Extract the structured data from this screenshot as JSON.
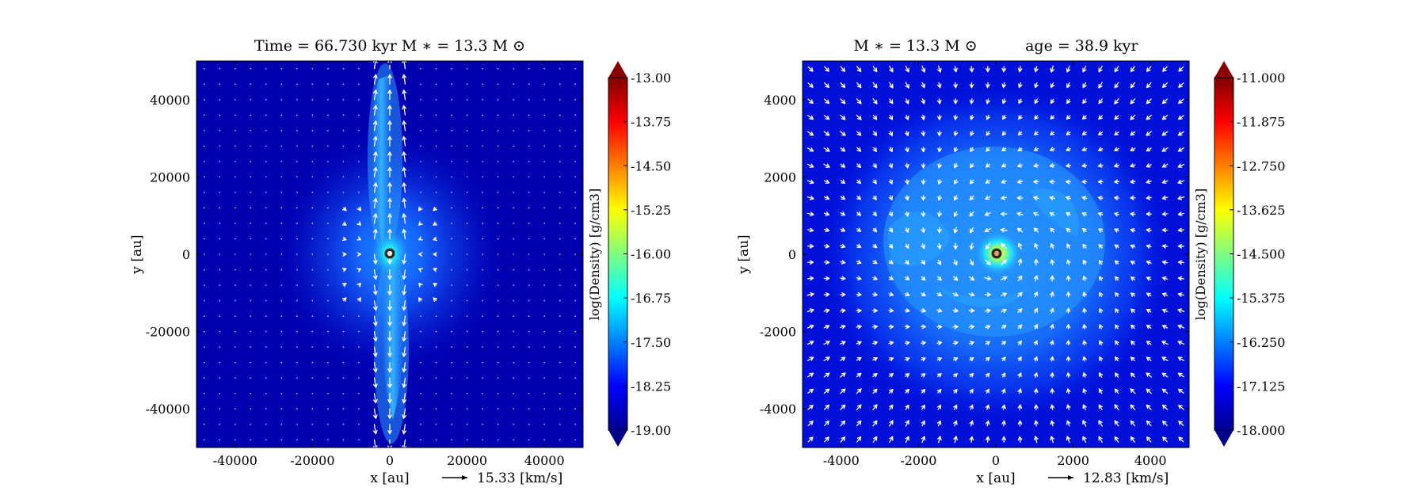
{
  "chart_data": [
    {
      "type": "heatmap",
      "title": "Time = 66.730 kyr    M$_*$ = 13.3 M$_\\odot$",
      "title_text": "Time = 66.730 kyr    M ∗ = 13.3 M ⊙",
      "xlabel": "x [au]",
      "ylabel": "y [au]",
      "xlim": [
        -50000,
        50000
      ],
      "ylim": [
        -50000,
        50000
      ],
      "xticks": [
        -40000,
        -20000,
        0,
        20000,
        40000
      ],
      "yticks": [
        40000,
        20000,
        0,
        -20000,
        -40000
      ],
      "xtick_labels": [
        "-40000",
        "-20000",
        "0",
        "20000",
        "40000"
      ],
      "ytick_labels": [
        "40000",
        "20000",
        "0",
        "-20000",
        "-40000"
      ],
      "colorbar": {
        "label": "log(Density) [g/cm3]",
        "range": [
          -19.0,
          -13.0
        ],
        "ticks": [
          -13.0,
          -13.75,
          -14.5,
          -15.25,
          -16.0,
          -16.75,
          -17.5,
          -18.25,
          -19.0
        ],
        "tick_labels": [
          "-13.00",
          "-13.75",
          "-14.50",
          "-15.25",
          "-16.00",
          "-16.75",
          "-17.50",
          "-18.25",
          "-19.00"
        ],
        "colormap": "jet",
        "extend": "both"
      },
      "quiver_key": "15.33 [km/s]",
      "structure": "bipolar outflow lobes along the y-axis around a central star at (0, 0)"
    },
    {
      "type": "heatmap",
      "title": "M$_*$ = 13.3 M$_\\odot$        age = 38.9 kyr",
      "title_text": "M ∗ = 13.3 M ⊙          age = 38.9 kyr",
      "xlabel": "x [au]",
      "ylabel": "y [au]",
      "xlim": [
        -5000,
        5000
      ],
      "ylim": [
        -5000,
        5000
      ],
      "xticks": [
        -4000,
        -2000,
        0,
        2000,
        4000
      ],
      "yticks": [
        4000,
        2000,
        0,
        -2000,
        -4000
      ],
      "xtick_labels": [
        "-4000",
        "-2000",
        "0",
        "2000",
        "4000"
      ],
      "ytick_labels": [
        "4000",
        "2000",
        "0",
        "-2000",
        "-4000"
      ],
      "colorbar": {
        "label": "log(Density) [g/cm3]",
        "range": [
          -18.0,
          -11.0
        ],
        "ticks": [
          -11.0,
          -11.875,
          -12.75,
          -13.625,
          -14.5,
          -15.375,
          -16.25,
          -17.125,
          -18.0
        ],
        "tick_labels": [
          "-11.000",
          "-11.875",
          "-12.750",
          "-13.625",
          "-14.500",
          "-15.375",
          "-16.250",
          "-17.125",
          "-18.000"
        ],
        "colormap": "jet",
        "extend": "both"
      },
      "quiver_key": "12.83 [km/s]",
      "structure": "disk-like dense region with spiral features around a central star at (0, 0)"
    }
  ],
  "colors": {
    "jet": [
      "#00007f",
      "#0000ff",
      "#007fff",
      "#00ffff",
      "#7fff7f",
      "#ffff00",
      "#ff7f00",
      "#ff0000",
      "#7f0000"
    ],
    "background_low": "#0000a8",
    "arrow": "#ffffff",
    "star_ring": "#2a2a2a",
    "star_core": "#e8e8e8"
  }
}
